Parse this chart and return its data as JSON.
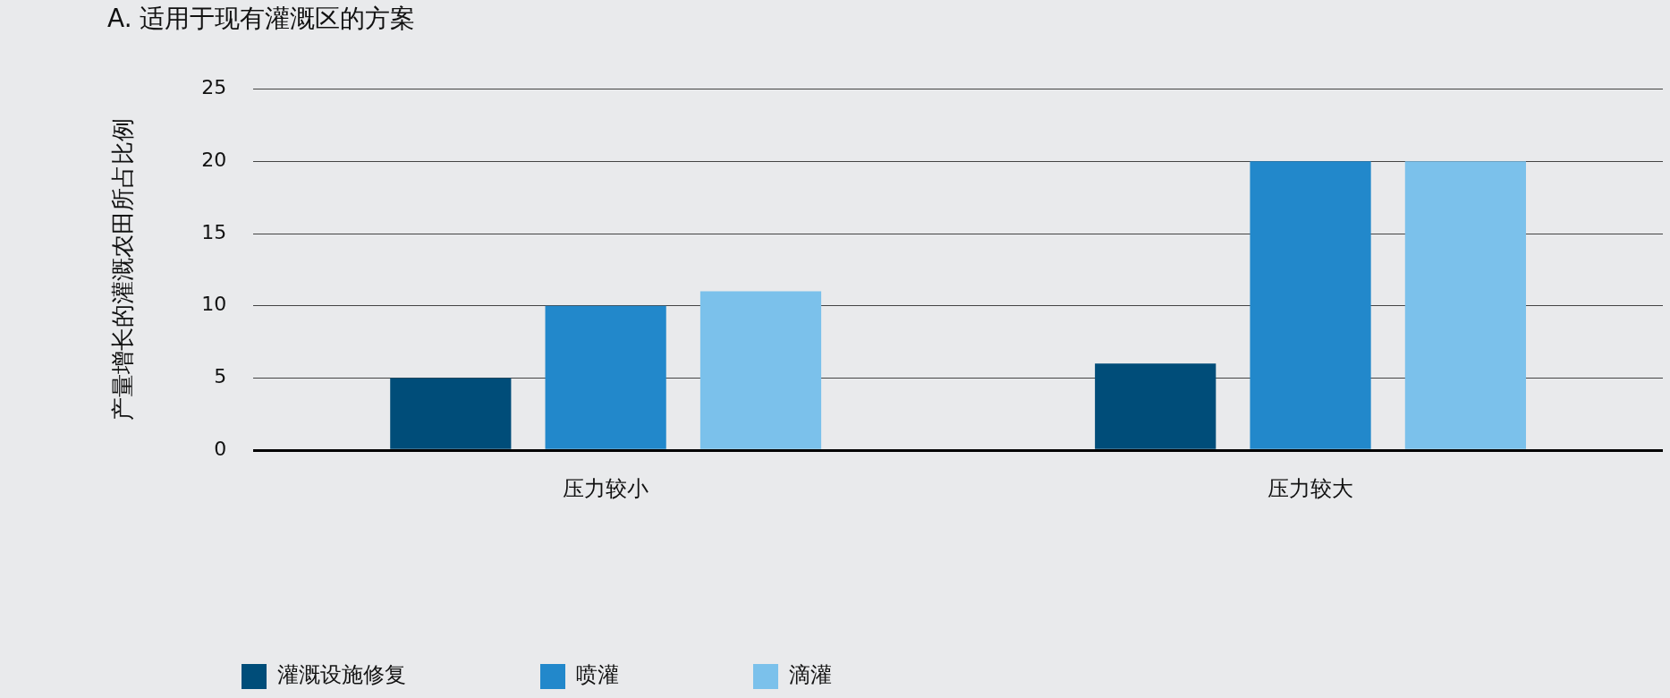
{
  "chart_data": {
    "type": "bar",
    "title": "A. 适用于现有灌溉区的方案",
    "ylabel": "产量增长的灌溉农田所占比例",
    "categories": [
      "压力较小",
      "压力较大"
    ],
    "series": [
      {
        "name": "灌溉设施修复",
        "color": "#004d79",
        "values": [
          5,
          6
        ]
      },
      {
        "name": "喷灌",
        "color": "#2288cb",
        "values": [
          10,
          20
        ]
      },
      {
        "name": "滴灌",
        "color": "#7bc1eb",
        "values": [
          11,
          20
        ]
      }
    ],
    "ylim": [
      0,
      25
    ],
    "yticks": [
      0,
      5,
      10,
      15,
      20,
      25
    ],
    "grid": "y",
    "legend": "bottom left"
  }
}
